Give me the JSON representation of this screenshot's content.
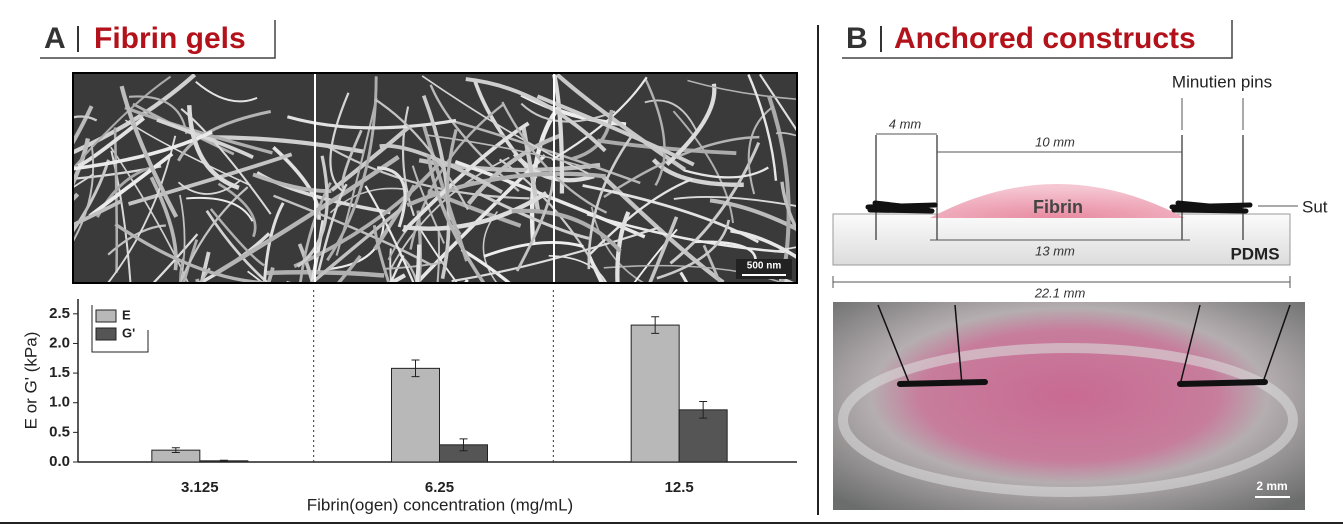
{
  "panel_a": {
    "label": "A",
    "title": "Fibrin gels",
    "scale_bar": "500 nm"
  },
  "chart_data": {
    "type": "bar",
    "categories": [
      "3.125",
      "6.25",
      "12.5"
    ],
    "series": [
      {
        "name": "E",
        "color": "#b8b8b8",
        "values": [
          0.2,
          1.58,
          2.31
        ],
        "errors": [
          0.04,
          0.14,
          0.14
        ]
      },
      {
        "name": "G'",
        "color": "#555555",
        "values": [
          0.02,
          0.29,
          0.88
        ],
        "errors": [
          0.01,
          0.1,
          0.14
        ]
      }
    ],
    "ylim": [
      0,
      2.75
    ],
    "yticks": [
      {
        "value": 0,
        "label": "0.0"
      },
      0.5,
      {
        "value": 1,
        "label": "1.0"
      },
      1.5,
      {
        "value": 2,
        "label": "2.0"
      },
      2.5
    ],
    "y_label": "E or G' (kPa)",
    "x_label": "Fibrin(ogen) concentration  (mg/mL)",
    "legend": "upper left"
  },
  "panel_b": {
    "label": "B",
    "title": "Anchored constructs",
    "diagram": {
      "pins": "Minutien pins",
      "gap": "4 mm",
      "inner": "10 mm",
      "gel": "Fibrin",
      "span": "13 mm",
      "base": "PDMS",
      "total": "22.1 mm",
      "sutures": "Sut"
    },
    "scale_bar": "2 mm"
  }
}
